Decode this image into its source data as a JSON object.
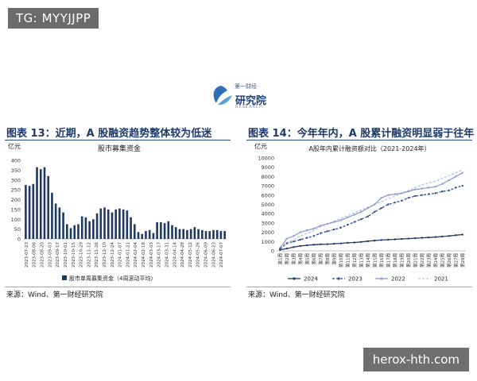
{
  "watermark_top": "TG: MYYJJPP",
  "watermark_bottom": "herox-hth.com",
  "logo": {
    "text": "研究院",
    "sub": "第一财经",
    "en": "RESEARCH"
  },
  "left": {
    "figure_title": "图表 13：近期，A 股融资趋势整体较为低迷",
    "source": "来源：Wind、第一财经研究院",
    "chart_data": {
      "type": "bar",
      "title": "股市募集资金",
      "ylabel": "亿元",
      "ylim": [
        0,
        400
      ],
      "yticks": [
        0,
        50,
        100,
        150,
        200,
        250,
        300,
        350,
        400
      ],
      "legend": "股市单周募集资金（4周滚动平均）",
      "legend_position": "bottom",
      "tick_labels": [
        "2023-07-23",
        "2023-08-06",
        "2023-08-20",
        "2023-09-03",
        "2023-09-17",
        "2023-10-01",
        "2023-10-15",
        "2023-10-29",
        "2023-11-12",
        "2023-11-26",
        "2023-12-10",
        "2023-12-24",
        "2024-01-07",
        "2024-01-21",
        "2024-02-04",
        "2024-02-18",
        "2024-03-03",
        "2024-03-17",
        "2024-03-31",
        "2024-04-14",
        "2024-04-28",
        "2024-05-12",
        "2024-05-26",
        "2024-06-09",
        "2024-06-23",
        "2024-07-07"
      ],
      "values": [
        275,
        270,
        280,
        365,
        355,
        365,
        320,
        235,
        180,
        160,
        135,
        75,
        55,
        70,
        75,
        115,
        110,
        90,
        100,
        130,
        155,
        160,
        150,
        135,
        150,
        155,
        150,
        145,
        110,
        75,
        35,
        25,
        40,
        45,
        30,
        85,
        85,
        80,
        90,
        70,
        60,
        50,
        50,
        45,
        50,
        60,
        50,
        45,
        40,
        40,
        45,
        45,
        40,
        40
      ]
    }
  },
  "right": {
    "figure_title": "图表 14：今年年内，A 股累计融资明显弱于往年",
    "source": "来源：Wind、第一财经研究院",
    "chart_data": {
      "type": "line",
      "title": "A股年内累计融资额对比（2021-2024年）",
      "ylabel": "亿元",
      "ylim": [
        0,
        10000
      ],
      "yticks": [
        0,
        1000,
        2000,
        3000,
        4000,
        5000,
        6000,
        7000,
        8000,
        9000,
        10000
      ],
      "x": [
        "第1周",
        "第2周",
        "第3周",
        "第4周",
        "第5周",
        "第6周",
        "第7周",
        "第8周",
        "第9周",
        "第10周",
        "第11周",
        "第12周",
        "第13周",
        "第14周",
        "第15周",
        "第16周",
        "第17周",
        "第18周",
        "第19周",
        "第20周",
        "第21周",
        "第22周",
        "第23周",
        "第24周",
        "第25周",
        "第26周",
        "第27周",
        "第28周"
      ],
      "legend_position": "bottom",
      "series": [
        {
          "name": "2024",
          "color": "#1f3864",
          "style": "solid-marker",
          "values": [
            100,
            250,
            400,
            520,
            600,
            660,
            700,
            720,
            760,
            800,
            860,
            900,
            960,
            1040,
            1100,
            1160,
            1200,
            1240,
            1280,
            1320,
            1360,
            1400,
            1440,
            1480,
            1540,
            1600,
            1680,
            1750
          ]
        },
        {
          "name": "2023",
          "color": "#2f4f8f",
          "style": "dashed-marker",
          "values": [
            200,
            800,
            1000,
            1200,
            1400,
            1600,
            1900,
            2100,
            2300,
            2500,
            2800,
            3100,
            3400,
            3700,
            4200,
            4600,
            5000,
            5200,
            5400,
            5700,
            5900,
            6000,
            6100,
            6200,
            6400,
            6500,
            6800,
            7000
          ]
        },
        {
          "name": "2022",
          "color": "#8e9ccc",
          "style": "solid-marker",
          "values": [
            300,
            1300,
            1600,
            2000,
            2200,
            2400,
            2700,
            2900,
            3100,
            3300,
            3600,
            3900,
            4200,
            4600,
            5000,
            5700,
            6000,
            6100,
            6200,
            6400,
            6600,
            6700,
            6800,
            6900,
            7200,
            7600,
            8000,
            8400
          ]
        },
        {
          "name": "2021",
          "color": "#b8bfdc",
          "style": "dashed",
          "values": [
            400,
            900,
            1200,
            1600,
            1900,
            2200,
            2600,
            2900,
            3200,
            3500,
            3800,
            4100,
            4400,
            4700,
            5000,
            5300,
            5600,
            5900,
            6200,
            6500,
            6800,
            7100,
            7300,
            7500,
            7800,
            8100,
            8400,
            8700
          ]
        }
      ]
    }
  }
}
